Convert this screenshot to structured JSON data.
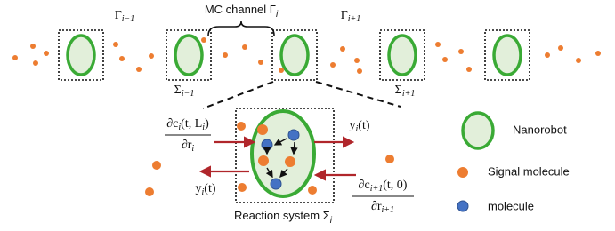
{
  "labels": {
    "gamma_prev": [
      "Γ",
      "i−1"
    ],
    "channel": [
      "MC channel Γ",
      "i"
    ],
    "gamma_next": [
      "Γ",
      "i+1"
    ],
    "sigma_prev": [
      "Σ",
      "i−1"
    ],
    "sigma_next": [
      "Σ",
      "i+1"
    ],
    "flux_in": {
      "num": [
        "∂c",
        "i",
        "(t, L",
        "i",
        ")"
      ],
      "den": [
        "∂r",
        "i"
      ]
    },
    "output_left": [
      "y",
      "i",
      "(t)"
    ],
    "output_right": [
      "y",
      "i",
      "(t)"
    ],
    "flux_out": {
      "num": [
        "∂c",
        "i+1",
        "(t, 0)"
      ],
      "den": [
        "∂r",
        "i+1"
      ]
    },
    "reaction_system": [
      "Reaction system Σ",
      "i"
    ]
  },
  "legend": [
    "Nanorobot",
    "Signal molecule",
    "molecule"
  ]
}
